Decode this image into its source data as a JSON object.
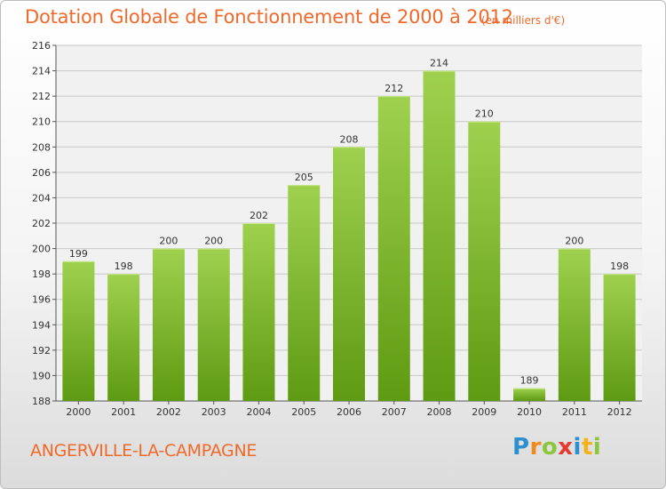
{
  "header": {
    "title": "Dotation Globale de Fonctionnement de 2000 à 2012",
    "subtitle": "(en milliers d'€)"
  },
  "footer": {
    "commune": "ANGERVILLE-LA-CAMPAGNE",
    "logo": {
      "p": "P",
      "r": "r",
      "o": "o",
      "x": "x",
      "i1": "i",
      "t": "t",
      "i2": "i"
    }
  },
  "colors": {
    "title": "#ef6a2a",
    "bar_light": "#9fd14f",
    "bar_dark": "#5e9a12",
    "grid": "#c8c8c8"
  },
  "chart_data": {
    "type": "bar",
    "title": "Dotation Globale de Fonctionnement de 2000 à 2012",
    "subtitle": "(en milliers d'€)",
    "categories": [
      "2000",
      "2001",
      "2002",
      "2003",
      "2004",
      "2005",
      "2006",
      "2007",
      "2008",
      "2009",
      "2010",
      "2011",
      "2012"
    ],
    "values": [
      199,
      198,
      200,
      200,
      202,
      205,
      208,
      212,
      214,
      210,
      189,
      200,
      198
    ],
    "ylim": [
      188,
      216
    ],
    "yticks": [
      188,
      190,
      192,
      194,
      196,
      198,
      200,
      202,
      204,
      206,
      208,
      210,
      212,
      214,
      216
    ],
    "grid": true,
    "data_labels": true
  }
}
